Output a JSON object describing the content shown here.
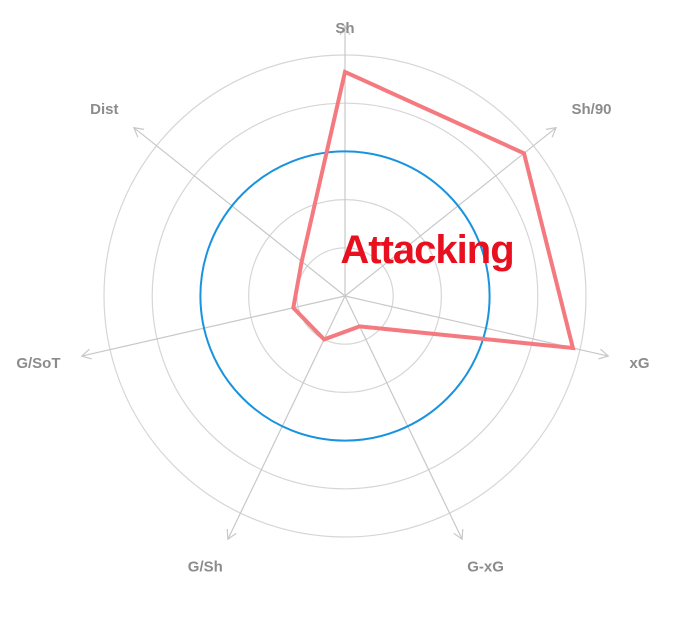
{
  "chart_data": {
    "type": "radar",
    "title": "Attacking",
    "axes": [
      "Sh",
      "Sh/90",
      "xG",
      "G-xG",
      "G/Sh",
      "G/SoT",
      "Dist"
    ],
    "range": [
      0,
      100
    ],
    "rings": [
      20,
      40,
      60,
      80,
      100
    ],
    "reference_circle": 60,
    "series": [
      {
        "values": [
          93,
          95,
          97,
          14,
          20,
          22,
          23
        ]
      }
    ],
    "colors": {
      "series": "#f47a80",
      "reference": "#1a93df",
      "grid": "#d6d6d6",
      "axis": "#c8c8c8",
      "label": "#8c8c8c",
      "title": "#e8101f"
    }
  }
}
